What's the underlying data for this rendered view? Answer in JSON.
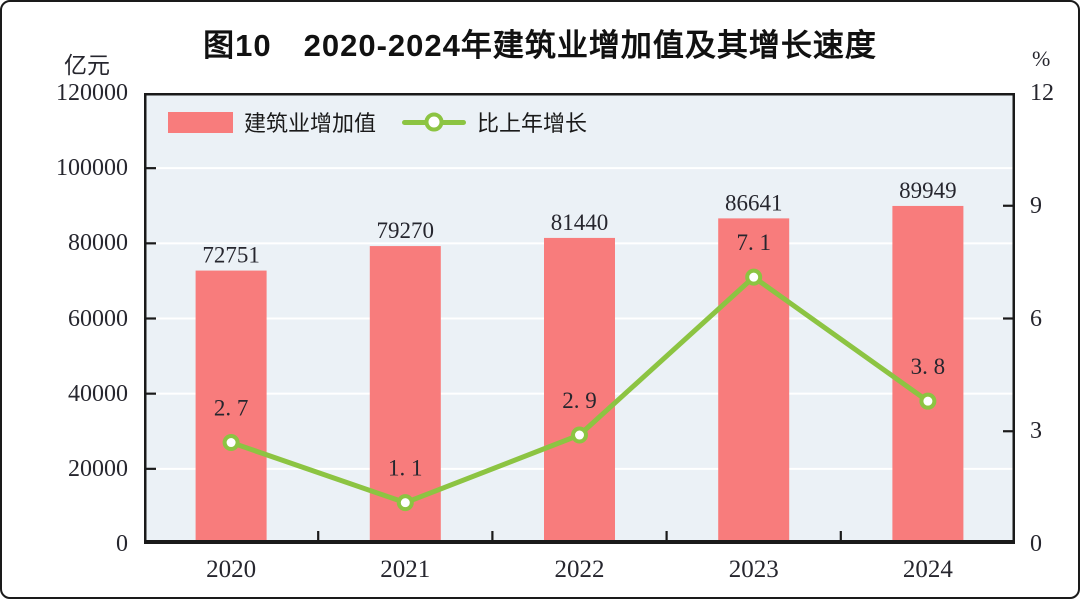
{
  "figure": {
    "title": "图10　2020-2024年建筑业增加值及其增长速度",
    "left_axis_unit": "亿元",
    "right_axis_unit": "%"
  },
  "legend": {
    "bar_label": "建筑业增加值",
    "line_label": "比上年增长"
  },
  "chart_data": {
    "type": "bar+line",
    "title": "图10　2020-2024年建筑业增加值及其增长速度",
    "categories": [
      "2020",
      "2021",
      "2022",
      "2023",
      "2024"
    ],
    "series": [
      {
        "name": "建筑业增加值",
        "type": "bar",
        "axis": "left",
        "unit": "亿元",
        "color": "#F87C7C",
        "values": [
          72751,
          79270,
          81440,
          86641,
          89949
        ],
        "data_labels": [
          "72751",
          "79270",
          "81440",
          "86641",
          "89949"
        ]
      },
      {
        "name": "比上年增长",
        "type": "line",
        "axis": "right",
        "unit": "%",
        "color": "#8CC442",
        "marker": "circle-white-fill",
        "values": [
          2.7,
          1.1,
          2.9,
          7.1,
          3.8
        ],
        "data_labels": [
          "2. 7",
          "1. 1",
          "2. 9",
          "7. 1",
          "3. 8"
        ]
      }
    ],
    "left_axis": {
      "unit": "亿元",
      "min": 0,
      "max": 120000,
      "tick_step": 20000,
      "tick_labels": [
        "120000",
        "100000",
        "80000",
        "60000",
        "40000",
        "20000",
        "0"
      ]
    },
    "right_axis": {
      "unit": "%",
      "min": 0,
      "max": 12,
      "tick_step": 3,
      "tick_labels": [
        "12",
        "9",
        "6",
        "3",
        "0"
      ]
    },
    "grid": "horizontal white gridlines at left-axis steps",
    "legend_position": "inside top-left",
    "ticks": "inward facing on left, right and bottom axes"
  },
  "colors": {
    "bar": "#F87C7C",
    "line": "#8CC442",
    "marker_fill": "#FFFFFF",
    "plot_background": "#EBF1F6",
    "grid_line": "#FFFFFF",
    "axis": "#1A1A1A",
    "number_text": "#26262E",
    "page_background": "#FFFFFF"
  }
}
